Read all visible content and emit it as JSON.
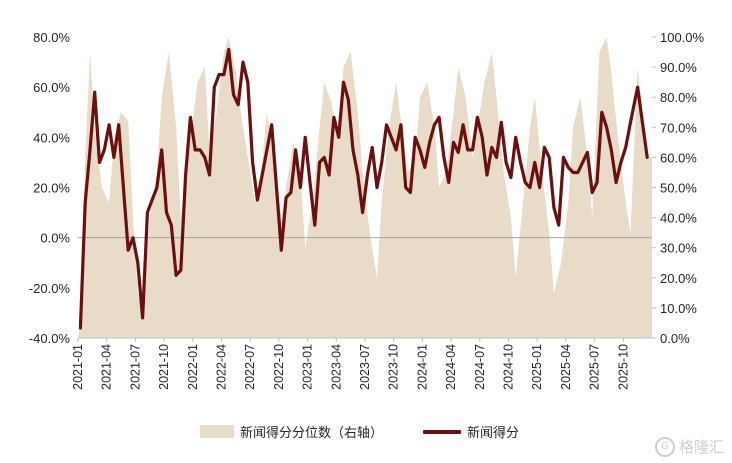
{
  "colors": {
    "area": "#e8dcc9",
    "line": "#6b0f0f",
    "axis": "#bfbfbf",
    "zero": "#a6a6a6"
  },
  "legend": {
    "area_label": "新闻得分分位数（右轴）",
    "line_label": "新闻得分"
  },
  "watermark": {
    "icon": "G",
    "text": "格隆汇"
  },
  "chart_data": {
    "type": "line",
    "title": "",
    "xlabel": "",
    "ylabel": "",
    "y_left": {
      "min": -40,
      "max": 80,
      "ticks": [
        "80.0%",
        "60.0%",
        "40.0%",
        "20.0%",
        "0.0%",
        "-20.0%",
        "-40.0%"
      ]
    },
    "y_right": {
      "min": 0,
      "max": 100,
      "ticks": [
        "100.0%",
        "90.0%",
        "80.0%",
        "70.0%",
        "60.0%",
        "50.0%",
        "40.0%",
        "30.0%",
        "20.0%",
        "10.0%",
        "0.0%"
      ]
    },
    "x_start": "2021-01",
    "x_end": "2025-12",
    "x_ticks": [
      "2021-01",
      "2021-04",
      "2021-07",
      "2021-10",
      "2022-01",
      "2022-04",
      "2022-07",
      "2022-10",
      "2023-01",
      "2023-04",
      "2023-07",
      "2023-10",
      "2024-01",
      "2024-04",
      "2024-07",
      "2024-10",
      "2025-01",
      "2025-04",
      "2025-07",
      "2025-10"
    ],
    "grid": false,
    "legend_position": "bottom",
    "series": [
      {
        "name": "新闻得分分位数（右轴）",
        "axis": "right",
        "kind": "area",
        "x": [
          "2021-01",
          "2021-01",
          "2021-02",
          "2021-02",
          "2021-03",
          "2021-04",
          "2021-04",
          "2021-05",
          "2021-06",
          "2021-06",
          "2021-07",
          "2021-07",
          "2021-08",
          "2021-09",
          "2021-09",
          "2021-10",
          "2021-11",
          "2021-11",
          "2021-12",
          "2022-01",
          "2022-02",
          "2022-02",
          "2022-03",
          "2022-04",
          "2022-04",
          "2022-05",
          "2022-06",
          "2022-06",
          "2022-07",
          "2022-08",
          "2022-08",
          "2022-09",
          "2022-10",
          "2022-10",
          "2022-11",
          "2022-12",
          "2022-12",
          "2023-01",
          "2023-02",
          "2023-02",
          "2023-03",
          "2023-04",
          "2023-04",
          "2023-05",
          "2023-06",
          "2023-06",
          "2023-07",
          "2023-08",
          "2023-08",
          "2023-09",
          "2023-10",
          "2023-10",
          "2023-11",
          "2023-12",
          "2023-12",
          "2024-01",
          "2024-02",
          "2024-02",
          "2024-03",
          "2024-04",
          "2024-04",
          "2024-05",
          "2024-06",
          "2024-06",
          "2024-07",
          "2024-08",
          "2024-08",
          "2024-09",
          "2024-10",
          "2024-10",
          "2024-11",
          "2024-12",
          "2024-12",
          "2025-01",
          "2025-02",
          "2025-02",
          "2025-03",
          "2025-04",
          "2025-04",
          "2025-05",
          "2025-06",
          "2025-06",
          "2025-07",
          "2025-08",
          "2025-08",
          "2025-09",
          "2025-10",
          "2025-10",
          "2025-11",
          "2025-12"
        ],
        "values": [
          5,
          60,
          95,
          70,
          50,
          45,
          65,
          75,
          72,
          40,
          15,
          8,
          40,
          55,
          80,
          95,
          70,
          40,
          60,
          85,
          90,
          62,
          75,
          95,
          100,
          88,
          70,
          60,
          45,
          58,
          75,
          60,
          40,
          50,
          65,
          55,
          30,
          45,
          70,
          85,
          78,
          65,
          90,
          95,
          75,
          55,
          35,
          20,
          45,
          70,
          85,
          72,
          55,
          60,
          80,
          85,
          70,
          50,
          55,
          75,
          90,
          80,
          60,
          70,
          85,
          95,
          80,
          55,
          40,
          20,
          45,
          70,
          80,
          55,
          35,
          15,
          25,
          45,
          70,
          80,
          60,
          40,
          95,
          100,
          88,
          65,
          45,
          35,
          90,
          60
        ]
      },
      {
        "name": "新闻得分",
        "axis": "left",
        "kind": "line",
        "x": [
          "2021-01",
          "2021-01",
          "2021-02",
          "2021-02",
          "2021-03",
          "2021-03",
          "2021-04",
          "2021-04",
          "2021-05",
          "2021-05",
          "2021-06",
          "2021-06",
          "2021-07",
          "2021-07",
          "2021-08",
          "2021-08",
          "2021-09",
          "2021-09",
          "2021-10",
          "2021-10",
          "2021-11",
          "2021-11",
          "2021-12",
          "2021-12",
          "2022-01",
          "2022-01",
          "2022-02",
          "2022-02",
          "2022-03",
          "2022-03",
          "2022-04",
          "2022-04",
          "2022-05",
          "2022-05",
          "2022-06",
          "2022-06",
          "2022-07",
          "2022-07",
          "2022-08",
          "2022-08",
          "2022-09",
          "2022-09",
          "2022-10",
          "2022-10",
          "2022-11",
          "2022-11",
          "2022-12",
          "2022-12",
          "2023-01",
          "2023-01",
          "2023-02",
          "2023-02",
          "2023-03",
          "2023-03",
          "2023-04",
          "2023-04",
          "2023-05",
          "2023-05",
          "2023-06",
          "2023-06",
          "2023-07",
          "2023-07",
          "2023-08",
          "2023-08",
          "2023-09",
          "2023-09",
          "2023-10",
          "2023-10",
          "2023-11",
          "2023-11",
          "2023-12",
          "2023-12",
          "2024-01",
          "2024-01",
          "2024-02",
          "2024-02",
          "2024-03",
          "2024-03",
          "2024-04",
          "2024-04",
          "2024-05",
          "2024-05",
          "2024-06",
          "2024-06",
          "2024-07",
          "2024-07",
          "2024-08",
          "2024-08",
          "2024-09",
          "2024-09",
          "2024-10",
          "2024-10",
          "2024-11",
          "2024-11",
          "2024-12",
          "2024-12",
          "2025-01",
          "2025-01",
          "2025-02",
          "2025-02",
          "2025-03",
          "2025-03",
          "2025-04",
          "2025-04",
          "2025-05",
          "2025-05",
          "2025-06",
          "2025-06",
          "2025-07",
          "2025-07",
          "2025-08",
          "2025-08",
          "2025-09",
          "2025-09",
          "2025-10",
          "2025-10",
          "2025-11",
          "2025-12"
        ],
        "values": [
          -36,
          14,
          35,
          58,
          30,
          35,
          45,
          32,
          45,
          20,
          -5,
          0,
          -10,
          -32,
          10,
          15,
          20,
          35,
          10,
          5,
          -15,
          -13,
          25,
          48,
          35,
          35,
          32,
          25,
          60,
          65,
          65,
          75,
          57,
          53,
          70,
          62,
          30,
          15,
          25,
          35,
          45,
          20,
          -5,
          16,
          18,
          35,
          20,
          40,
          22,
          5,
          30,
          32,
          25,
          48,
          40,
          62,
          55,
          35,
          25,
          10,
          25,
          36,
          20,
          30,
          45,
          40,
          35,
          45,
          20,
          18,
          40,
          35,
          28,
          38,
          45,
          48,
          32,
          22,
          38,
          34,
          45,
          35,
          35,
          48,
          40,
          25,
          36,
          32,
          46,
          30,
          24,
          40,
          30,
          22,
          20,
          30,
          20,
          36,
          32,
          12,
          5,
          32,
          28,
          26,
          26,
          30,
          34,
          18,
          22,
          50,
          44,
          35,
          22,
          30,
          36,
          46,
          60,
          32
        ],
        "ticks_note": ""
      }
    ]
  }
}
